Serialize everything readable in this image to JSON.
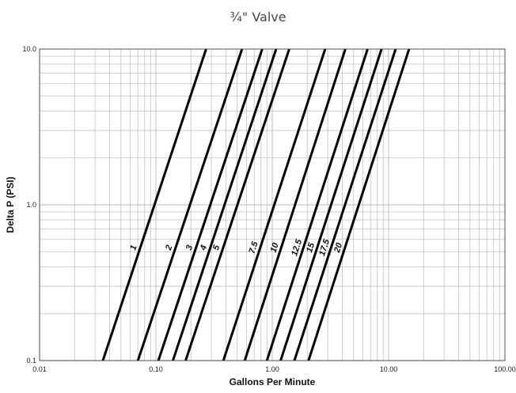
{
  "chart_data": {
    "type": "line",
    "title": "¾\" Valve",
    "xlabel": "Gallons Per Minute",
    "ylabel": "Delta P (PSI)",
    "x_scale": "log",
    "y_scale": "log",
    "xlim": [
      0.01,
      100
    ],
    "ylim": [
      0.1,
      10
    ],
    "x_ticks": [
      "0.01",
      "0.10",
      "1.00",
      "10.00",
      "100.00"
    ],
    "y_ticks": [
      "0.1",
      "1.0",
      "10.0"
    ],
    "grid": true,
    "line_color": "#000000",
    "grid_color": "#c8c8c8",
    "series": [
      {
        "name": "1",
        "x": [
          0.035,
          0.27
        ],
        "y": [
          0.1,
          10.0
        ]
      },
      {
        "name": "2",
        "x": [
          0.07,
          0.55
        ],
        "y": [
          0.1,
          10.0
        ]
      },
      {
        "name": "3",
        "x": [
          0.105,
          0.82
        ],
        "y": [
          0.1,
          10.0
        ]
      },
      {
        "name": "4",
        "x": [
          0.14,
          1.08
        ],
        "y": [
          0.1,
          10.0
        ]
      },
      {
        "name": "5",
        "x": [
          0.18,
          1.4
        ],
        "y": [
          0.1,
          10.0
        ]
      },
      {
        "name": "7.5",
        "x": [
          0.38,
          2.85
        ],
        "y": [
          0.1,
          10.0
        ]
      },
      {
        "name": "10",
        "x": [
          0.58,
          4.25
        ],
        "y": [
          0.1,
          10.0
        ]
      },
      {
        "name": "12.5",
        "x": [
          0.9,
          6.6
        ],
        "y": [
          0.1,
          10.0
        ]
      },
      {
        "name": "15",
        "x": [
          1.18,
          8.7
        ],
        "y": [
          0.1,
          10.0
        ]
      },
      {
        "name": "17.5",
        "x": [
          1.55,
          11.5
        ],
        "y": [
          0.1,
          10.0
        ]
      },
      {
        "name": "20",
        "x": [
          2.05,
          15.0
        ],
        "y": [
          0.1,
          10.0
        ]
      }
    ]
  }
}
